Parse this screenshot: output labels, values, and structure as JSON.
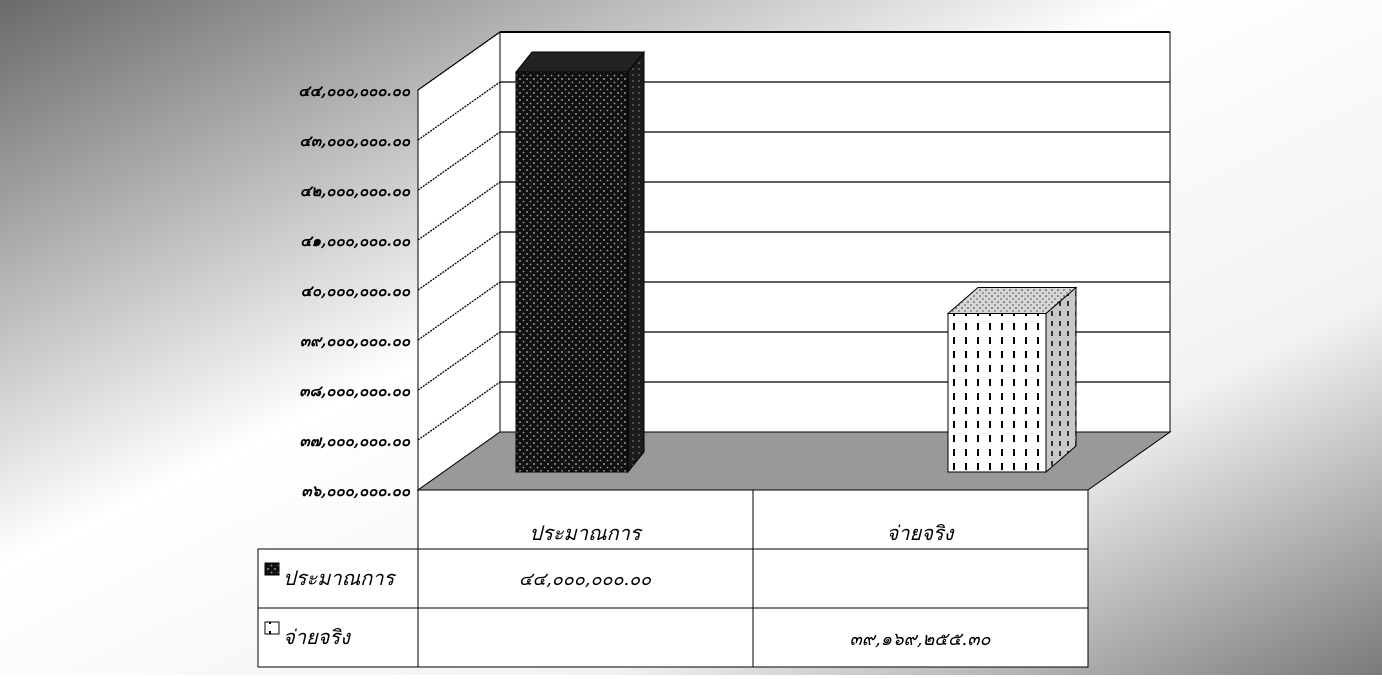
{
  "chart_data": {
    "type": "bar",
    "categories": [
      "ประมาณการ",
      "จ่ายจริง"
    ],
    "series": [
      {
        "name": "ประมาณการ",
        "values": [
          44000000.0,
          null
        ]
      },
      {
        "name": "จ่ายจริง",
        "values": [
          null,
          39169255.3
        ]
      }
    ],
    "y_ticks": [
      "๓๖,๐๐๐,๐๐๐.๐๐",
      "๓๗,๐๐๐,๐๐๐.๐๐",
      "๓๘,๐๐๐,๐๐๐.๐๐",
      "๓๙,๐๐๐,๐๐๐.๐๐",
      "๔๐,๐๐๐,๐๐๐.๐๐",
      "๔๑,๐๐๐,๐๐๐.๐๐",
      "๔๒,๐๐๐,๐๐๐.๐๐",
      "๔๓,๐๐๐,๐๐๐.๐๐",
      "๔๔,๐๐๐,๐๐๐.๐๐"
    ],
    "ylim": [
      36000000,
      44000000
    ],
    "grid": true,
    "legend": "data-table",
    "table": {
      "rows": [
        {
          "label": "ประมาณการ",
          "cells": [
            "๔๔,๐๐๐,๐๐๐.๐๐",
            ""
          ]
        },
        {
          "label": "จ่ายจริง",
          "cells": [
            "",
            "๓๙,๑๖๙,๒๕๕.๓๐"
          ]
        }
      ]
    },
    "title": "",
    "xlabel": "",
    "ylabel": ""
  }
}
